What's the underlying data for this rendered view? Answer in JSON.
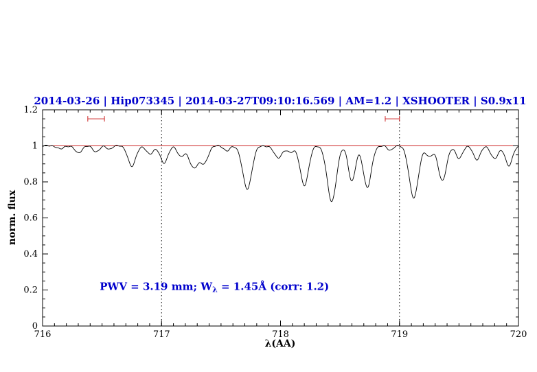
{
  "colors": {
    "title": "#0000cc",
    "annotation": "#0000cc",
    "continuum_line": "#cc2222",
    "range_marker": "#cc2222",
    "spectrum": "#000000",
    "frame": "#000000"
  },
  "chart_data": {
    "type": "line",
    "title": "2014-03-26 | Hip073345 | 2014-03-27T09:10:16.569 | AM=1.2 | XSHOOTER | S0.9x11",
    "xlabel": "λ(AA)",
    "ylabel": "norm. flux",
    "xlim": [
      716,
      720
    ],
    "ylim": [
      0,
      1.2
    ],
    "grid": "off",
    "legend": "none",
    "xticks": {
      "major": [
        716,
        717,
        718,
        719,
        720
      ],
      "labels": [
        "716",
        "717",
        "718",
        "719",
        "720"
      ],
      "minor_step": 0.1
    },
    "yticks": {
      "major": [
        0,
        0.2,
        0.4,
        0.6,
        0.8,
        1,
        1.2
      ],
      "labels": [
        "0",
        "0.2",
        "0.4",
        "0.6",
        "0.8",
        "1",
        "1.2"
      ],
      "minor_step": 0.05
    },
    "dotted_vlines": [
      717,
      719
    ],
    "continuum_y": 1.0,
    "range_markers": [
      {
        "x1": 716.38,
        "x2": 716.52,
        "y": 1.15
      },
      {
        "x1": 718.88,
        "x2": 719.0,
        "y": 1.15
      }
    ],
    "annotation": {
      "pre": "PWV = 3.19 mm; W",
      "sub": "λ",
      "post": " = 1.45Å (corr: 1.2)",
      "x": 716.48,
      "y": 0.2
    },
    "absorption_lines": [
      {
        "center": 716.15,
        "depth": 0.018,
        "sigma": 0.025
      },
      {
        "center": 716.3,
        "depth": 0.04,
        "sigma": 0.028
      },
      {
        "center": 716.45,
        "depth": 0.032,
        "sigma": 0.028
      },
      {
        "center": 716.56,
        "depth": 0.018,
        "sigma": 0.022
      },
      {
        "center": 716.75,
        "depth": 0.115,
        "sigma": 0.032
      },
      {
        "center": 716.9,
        "depth": 0.045,
        "sigma": 0.03
      },
      {
        "center": 717.02,
        "depth": 0.095,
        "sigma": 0.032
      },
      {
        "center": 717.16,
        "depth": 0.055,
        "sigma": 0.028
      },
      {
        "center": 717.27,
        "depth": 0.12,
        "sigma": 0.04
      },
      {
        "center": 717.36,
        "depth": 0.09,
        "sigma": 0.032
      },
      {
        "center": 717.55,
        "depth": 0.028,
        "sigma": 0.025
      },
      {
        "center": 717.72,
        "depth": 0.24,
        "sigma": 0.038
      },
      {
        "center": 717.98,
        "depth": 0.065,
        "sigma": 0.035
      },
      {
        "center": 718.08,
        "depth": 0.035,
        "sigma": 0.028
      },
      {
        "center": 718.2,
        "depth": 0.22,
        "sigma": 0.035
      },
      {
        "center": 718.43,
        "depth": 0.31,
        "sigma": 0.038
      },
      {
        "center": 718.6,
        "depth": 0.195,
        "sigma": 0.03
      },
      {
        "center": 718.73,
        "depth": 0.23,
        "sigma": 0.034
      },
      {
        "center": 718.92,
        "depth": 0.025,
        "sigma": 0.022
      },
      {
        "center": 719.12,
        "depth": 0.29,
        "sigma": 0.038
      },
      {
        "center": 719.25,
        "depth": 0.06,
        "sigma": 0.028
      },
      {
        "center": 719.36,
        "depth": 0.195,
        "sigma": 0.034
      },
      {
        "center": 719.5,
        "depth": 0.07,
        "sigma": 0.028
      },
      {
        "center": 719.65,
        "depth": 0.075,
        "sigma": 0.03
      },
      {
        "center": 719.8,
        "depth": 0.07,
        "sigma": 0.032
      },
      {
        "center": 719.92,
        "depth": 0.11,
        "sigma": 0.03
      }
    ]
  }
}
